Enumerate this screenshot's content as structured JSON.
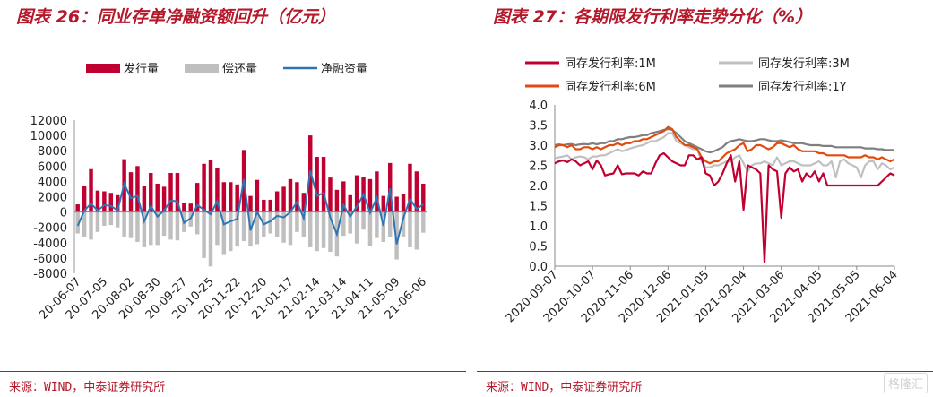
{
  "panels": [
    {
      "title": "图表 26：同业存单净融资额回升（亿元）",
      "source": "来源：WIND，中泰证券研究所"
    },
    {
      "title": "图表 27：各期限发行利率走势分化（%）",
      "source": "来源：WIND，中泰证券研究所"
    }
  ],
  "watermark": "格隆汇",
  "chart_data": [
    {
      "type": "bar",
      "legend_position": "top",
      "ylim": [
        -8000,
        12000
      ],
      "yticks": [
        -8000,
        -6000,
        -4000,
        -2000,
        0,
        2000,
        4000,
        6000,
        8000,
        10000,
        12000
      ],
      "xtick_labels": [
        "20-06-07",
        "20-07-05",
        "20-08-02",
        "20-08-30",
        "20-09-27",
        "20-10-25",
        "20-11-22",
        "20-12-20",
        "21-01-17",
        "21-02-14",
        "21-03-14",
        "21-04-11",
        "21-05-09",
        "21-06-06"
      ],
      "colors": {
        "issue": "#c00030",
        "repay": "#bfbfbf",
        "net": "#2e75b6"
      },
      "series": [
        {
          "name": "发行量",
          "values": [
            1000,
            3400,
            5600,
            2800,
            2700,
            2500,
            2200,
            6900,
            5200,
            6000,
            3400,
            5100,
            3700,
            3300,
            5100,
            5100,
            1200,
            1100,
            3800,
            6300,
            6800,
            5700,
            3900,
            3900,
            3600,
            8100,
            2100,
            4200,
            1600,
            1600,
            2700,
            3300,
            4300,
            3900,
            2500,
            10000,
            7200,
            7200,
            4500,
            2900,
            4000,
            2200,
            4800,
            4600,
            4300,
            5300,
            2100,
            6400,
            2000,
            2400,
            6300,
            5300,
            3700
          ]
        },
        {
          "name": "偿还量",
          "values": [
            -2800,
            -3200,
            -3600,
            -2600,
            -1800,
            -1700,
            -2000,
            -3200,
            -3400,
            -3900,
            -4600,
            -4300,
            -4300,
            -3100,
            -3600,
            -3700,
            -2600,
            -1900,
            -2900,
            -6000,
            -7100,
            -4300,
            -5500,
            -5100,
            -4500,
            -3800,
            -4500,
            -4200,
            -3200,
            -2800,
            -3200,
            -4000,
            -4300,
            -2600,
            -3300,
            -4600,
            -5100,
            -4700,
            -5200,
            -5800,
            -3100,
            -2800,
            -4100,
            -2300,
            -4400,
            -3400,
            -3900,
            -3300,
            -6200,
            -3200,
            -4600,
            -4900,
            -2700
          ]
        },
        {
          "name": "净融资量",
          "values": [
            -1800,
            200,
            1100,
            200,
            900,
            800,
            200,
            3700,
            1800,
            2100,
            -1200,
            800,
            -600,
            200,
            1500,
            1400,
            -1400,
            -800,
            900,
            300,
            -300,
            1400,
            -1600,
            -1200,
            -900,
            4300,
            -2400,
            0,
            -1600,
            -1200,
            -500,
            -700,
            0,
            1300,
            -800,
            5400,
            2100,
            2500,
            -700,
            -2900,
            900,
            -600,
            700,
            2300,
            -100,
            1900,
            -1800,
            3100,
            -4200,
            -800,
            1700,
            400,
            1000
          ]
        }
      ]
    },
    {
      "type": "line",
      "legend_position": "top",
      "ylim": [
        0.0,
        4.0
      ],
      "yticks": [
        "0.0",
        "0.5",
        "1.0",
        "1.5",
        "2.0",
        "2.5",
        "3.0",
        "3.5",
        "4.0"
      ],
      "xtick_labels": [
        "2020-09-07",
        "2020-10-07",
        "2020-11-06",
        "2020-12-06",
        "2021-01-05",
        "2021-02-04",
        "2021-03-06",
        "2021-04-05",
        "2021-05-05",
        "2021-06-04"
      ],
      "series": [
        {
          "name": "同存发行利率:1M",
          "color": "#c00030",
          "values": [
            2.55,
            2.6,
            2.62,
            2.58,
            2.65,
            2.6,
            2.5,
            2.55,
            2.6,
            2.4,
            2.62,
            2.5,
            2.25,
            2.28,
            2.3,
            2.5,
            2.28,
            2.3,
            2.3,
            2.3,
            2.25,
            2.35,
            2.3,
            2.3,
            2.55,
            2.75,
            2.8,
            2.7,
            2.6,
            2.55,
            2.5,
            2.5,
            2.75,
            2.75,
            2.65,
            2.7,
            2.3,
            2.25,
            2.0,
            2.1,
            2.3,
            2.55,
            2.75,
            2.1,
            2.6,
            1.4,
            2.5,
            2.45,
            2.4,
            2.3,
            0.1,
            2.5,
            2.4,
            2.35,
            1.2,
            2.3,
            2.45,
            2.35,
            2.4,
            2.1,
            2.3,
            2.2,
            2.35,
            2.1,
            2.3,
            2.0,
            2.0,
            2.0,
            2.0,
            2.0,
            2.0,
            2.0,
            2.0,
            2.0,
            2.0,
            2.0,
            2.0,
            2.0,
            2.1,
            2.2,
            2.3,
            2.25
          ]
        },
        {
          "name": "同存发行利率:3M",
          "color": "#c0c0c0",
          "values": [
            2.68,
            2.7,
            2.72,
            2.75,
            2.65,
            2.7,
            2.72,
            2.7,
            2.65,
            2.72,
            2.72,
            2.75,
            2.75,
            2.8,
            2.85,
            2.9,
            2.85,
            2.88,
            2.92,
            2.95,
            2.98,
            3.0,
            3.05,
            3.1,
            3.1,
            3.15,
            3.2,
            3.3,
            3.3,
            3.1,
            3.05,
            3.0,
            2.95,
            2.9,
            2.9,
            2.6,
            2.45,
            2.45,
            2.5,
            2.5,
            2.55,
            2.6,
            2.6,
            2.7,
            2.75,
            2.55,
            2.35,
            2.5,
            2.55,
            2.55,
            2.6,
            2.55,
            2.5,
            2.7,
            2.5,
            2.55,
            2.6,
            2.6,
            2.55,
            2.5,
            2.5,
            2.5,
            2.55,
            2.6,
            2.5,
            2.5,
            2.6,
            2.2,
            2.6,
            2.65,
            2.55,
            2.5,
            2.45,
            2.2,
            2.5,
            2.6,
            2.6,
            2.4,
            2.55,
            2.5,
            2.4,
            2.45
          ]
        },
        {
          "name": "同存发行利率:6M",
          "color": "#e34a0e",
          "values": [
            2.95,
            3.0,
            3.0,
            2.95,
            3.0,
            2.9,
            2.9,
            2.95,
            2.95,
            2.9,
            2.95,
            2.9,
            2.95,
            3.0,
            3.0,
            3.05,
            3.0,
            3.05,
            3.05,
            3.1,
            3.1,
            3.15,
            3.15,
            3.2,
            3.25,
            3.3,
            3.35,
            3.45,
            3.4,
            3.2,
            3.1,
            3.0,
            3.0,
            2.95,
            2.9,
            2.7,
            2.6,
            2.55,
            2.6,
            2.6,
            2.7,
            2.8,
            2.85,
            2.9,
            3.0,
            3.05,
            2.85,
            2.9,
            3.0,
            3.0,
            2.95,
            2.9,
            2.95,
            3.05,
            3.05,
            3.0,
            2.95,
            3.0,
            2.9,
            2.85,
            2.85,
            2.85,
            2.85,
            2.8,
            2.8,
            2.75,
            2.75,
            2.75,
            2.75,
            2.75,
            2.7,
            2.7,
            2.7,
            2.7,
            2.75,
            2.7,
            2.7,
            2.65,
            2.7,
            2.65,
            2.6,
            2.65
          ]
        },
        {
          "name": "同存发行利率:1Y",
          "color": "#7f7f7f",
          "values": [
            3.0,
            3.02,
            3.0,
            3.02,
            3.03,
            3.0,
            3.02,
            3.03,
            3.02,
            3.05,
            3.02,
            3.05,
            3.05,
            3.1,
            3.1,
            3.15,
            3.15,
            3.18,
            3.2,
            3.2,
            3.22,
            3.25,
            3.25,
            3.3,
            3.32,
            3.35,
            3.38,
            3.4,
            3.38,
            3.3,
            3.2,
            3.1,
            3.05,
            3.0,
            2.95,
            2.9,
            2.85,
            2.82,
            2.85,
            2.9,
            2.95,
            3.05,
            3.1,
            3.12,
            3.15,
            3.12,
            3.1,
            3.1,
            3.12,
            3.15,
            3.15,
            3.12,
            3.1,
            3.1,
            3.12,
            3.1,
            3.08,
            3.05,
            3.05,
            3.05,
            3.02,
            3.0,
            3.0,
            3.0,
            2.98,
            2.98,
            2.98,
            2.95,
            2.95,
            2.95,
            2.95,
            2.95,
            2.95,
            2.95,
            2.92,
            2.92,
            2.92,
            2.9,
            2.9,
            2.88,
            2.88,
            2.88
          ]
        }
      ]
    }
  ]
}
